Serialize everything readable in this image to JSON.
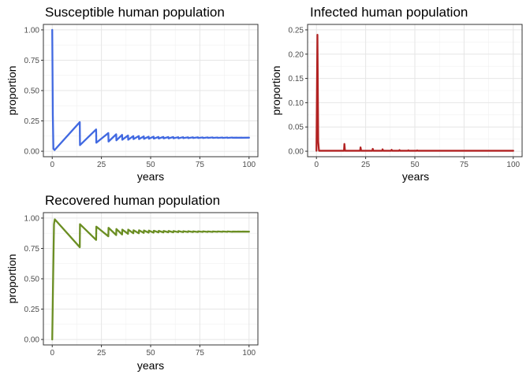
{
  "chart_data": [
    {
      "type": "line",
      "title": "Susceptible human population",
      "xlabel": "years",
      "ylabel": "proportion",
      "xlim": [
        0,
        100
      ],
      "ylim": [
        0,
        1.0
      ],
      "xticks": [
        "0",
        "25",
        "50",
        "75",
        "100"
      ],
      "yticks": [
        "0.00",
        "0.25",
        "0.50",
        "0.75",
        "1.00"
      ],
      "grid": true,
      "legend": "none",
      "color": "#4169E1",
      "series": [
        {
          "x": [
            0,
            0.3,
            0.6,
            1.2,
            14.0,
            14.1,
            22.3,
            22.4,
            28.5,
            28.6,
            32.5,
            32.6,
            35.5,
            35.6,
            38.5,
            38.6,
            41.2,
            41.3,
            44.0,
            44.1,
            46.5,
            46.6,
            49.0,
            49.1,
            51.5,
            51.6,
            54.0,
            54.1,
            56.5,
            56.6,
            59.0,
            59.1,
            61.5,
            61.6,
            64.0,
            64.1,
            66.5,
            66.6,
            69.0,
            69.1,
            71.5,
            71.6,
            74.0,
            74.1,
            76.5,
            76.6,
            79.0,
            79.1,
            81.5,
            81.6,
            84.0,
            84.1,
            86.5,
            86.6,
            89.0,
            89.1,
            91.5,
            91.6,
            94.0,
            94.1,
            96.5,
            96.6,
            100
          ],
          "y": [
            1.0,
            0.3,
            0.02,
            0.01,
            0.24,
            0.05,
            0.18,
            0.07,
            0.15,
            0.08,
            0.14,
            0.09,
            0.135,
            0.095,
            0.13,
            0.095,
            0.125,
            0.1,
            0.125,
            0.1,
            0.122,
            0.102,
            0.12,
            0.103,
            0.12,
            0.104,
            0.118,
            0.105,
            0.118,
            0.106,
            0.117,
            0.106,
            0.117,
            0.107,
            0.116,
            0.107,
            0.116,
            0.108,
            0.115,
            0.108,
            0.115,
            0.109,
            0.115,
            0.109,
            0.114,
            0.109,
            0.114,
            0.11,
            0.114,
            0.11,
            0.113,
            0.11,
            0.113,
            0.11,
            0.113,
            0.11,
            0.113,
            0.111,
            0.112,
            0.111,
            0.112,
            0.111,
            0.112
          ]
        }
      ]
    },
    {
      "type": "line",
      "title": "Infected human population",
      "xlabel": "years",
      "ylabel": "proportion",
      "xlim": [
        0,
        100
      ],
      "ylim": [
        0,
        0.25
      ],
      "xticks": [
        "0",
        "25",
        "50",
        "75",
        "100"
      ],
      "yticks": [
        "0.00",
        "0.05",
        "0.10",
        "0.15",
        "0.20",
        "0.25"
      ],
      "grid": true,
      "legend": "none",
      "color": "#B22222",
      "series": [
        {
          "x": [
            0,
            0.5,
            0.9,
            1.3,
            14.0,
            14.2,
            14.5,
            22.2,
            22.4,
            22.7,
            28.4,
            28.6,
            28.9,
            33.4,
            33.6,
            33.9,
            38.0,
            38.2,
            38.5,
            42.0,
            42.2,
            42.5,
            46.5,
            46.7,
            47.0,
            51.0,
            51.2,
            51.5,
            100
          ],
          "y": [
            0.001,
            0.24,
            0.02,
            0.001,
            0.001,
            0.015,
            0.001,
            0.001,
            0.008,
            0.001,
            0.001,
            0.005,
            0.001,
            0.001,
            0.004,
            0.001,
            0.001,
            0.003,
            0.001,
            0.001,
            0.0025,
            0.001,
            0.001,
            0.002,
            0.001,
            0.001,
            0.0018,
            0.001,
            0.001
          ]
        }
      ]
    },
    {
      "type": "line",
      "title": "Recovered human population",
      "xlabel": "years",
      "ylabel": "proportion",
      "xlim": [
        0,
        100
      ],
      "ylim": [
        0,
        1.0
      ],
      "xticks": [
        "0",
        "25",
        "50",
        "75",
        "100"
      ],
      "yticks": [
        "0.00",
        "0.25",
        "0.50",
        "0.75",
        "1.00"
      ],
      "grid": true,
      "legend": "none",
      "color": "#6B8E23",
      "series": [
        {
          "x": [
            0,
            0.4,
            0.9,
            1.3,
            14.0,
            14.1,
            22.3,
            22.4,
            28.5,
            28.6,
            32.5,
            32.6,
            35.5,
            35.6,
            38.5,
            38.6,
            41.2,
            41.3,
            44.0,
            44.1,
            46.5,
            46.6,
            49.0,
            49.1,
            51.5,
            51.6,
            54.0,
            54.1,
            56.5,
            56.6,
            59.0,
            59.1,
            61.5,
            61.6,
            64.0,
            64.1,
            66.5,
            66.6,
            69.0,
            69.1,
            71.5,
            71.6,
            74.0,
            74.1,
            76.5,
            76.6,
            79.0,
            79.1,
            81.5,
            81.6,
            84.0,
            84.1,
            86.5,
            86.6,
            89.0,
            89.1,
            91.5,
            91.6,
            94.0,
            94.1,
            96.5,
            96.6,
            100
          ],
          "y": [
            0.0,
            0.45,
            0.95,
            0.99,
            0.76,
            0.95,
            0.82,
            0.93,
            0.85,
            0.92,
            0.86,
            0.91,
            0.865,
            0.905,
            0.87,
            0.905,
            0.875,
            0.9,
            0.875,
            0.9,
            0.878,
            0.898,
            0.88,
            0.897,
            0.88,
            0.896,
            0.882,
            0.895,
            0.882,
            0.894,
            0.883,
            0.894,
            0.883,
            0.893,
            0.884,
            0.893,
            0.884,
            0.892,
            0.885,
            0.892,
            0.885,
            0.891,
            0.885,
            0.891,
            0.886,
            0.891,
            0.886,
            0.89,
            0.886,
            0.89,
            0.887,
            0.89,
            0.887,
            0.89,
            0.887,
            0.89,
            0.887,
            0.889,
            0.888,
            0.889,
            0.888,
            0.889,
            0.888
          ]
        }
      ]
    }
  ]
}
